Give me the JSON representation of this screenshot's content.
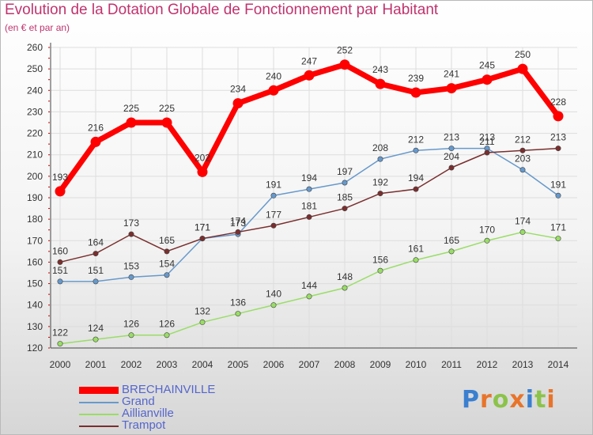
{
  "title": "Evolution de la Dotation Globale de Fonctionnement par Habitant",
  "subtitle": "(en € et par an)",
  "logo_text": "Proxiti",
  "chart_data": {
    "type": "line",
    "x": [
      "2000",
      "2001",
      "2002",
      "2003",
      "2004",
      "2005",
      "2006",
      "2007",
      "2008",
      "2009",
      "2010",
      "2011",
      "2012",
      "2013",
      "2014"
    ],
    "ylim": [
      120,
      260
    ],
    "yticks": [
      120,
      130,
      140,
      150,
      160,
      170,
      180,
      190,
      200,
      210,
      220,
      230,
      240,
      250,
      260
    ],
    "grid": true,
    "legend_position": "bottom-left",
    "series": [
      {
        "name": "BRECHAINVILLE",
        "color": "#ff0000",
        "values": [
          193,
          216,
          225,
          225,
          202,
          234,
          240,
          247,
          252,
          243,
          239,
          241,
          245,
          250,
          228
        ]
      },
      {
        "name": "Grand",
        "color": "#6699cc",
        "values": [
          151,
          151,
          153,
          154,
          171,
          173,
          191,
          194,
          197,
          208,
          212,
          213,
          213,
          203,
          191
        ]
      },
      {
        "name": "Aillianville",
        "color": "#99dd66",
        "values": [
          122,
          124,
          126,
          126,
          132,
          136,
          140,
          144,
          148,
          156,
          161,
          165,
          170,
          174,
          171
        ]
      },
      {
        "name": "Trampot",
        "color": "#7a2e2e",
        "values": [
          160,
          164,
          173,
          165,
          171,
          174,
          177,
          181,
          185,
          192,
          194,
          204,
          211,
          212,
          213
        ]
      }
    ]
  }
}
